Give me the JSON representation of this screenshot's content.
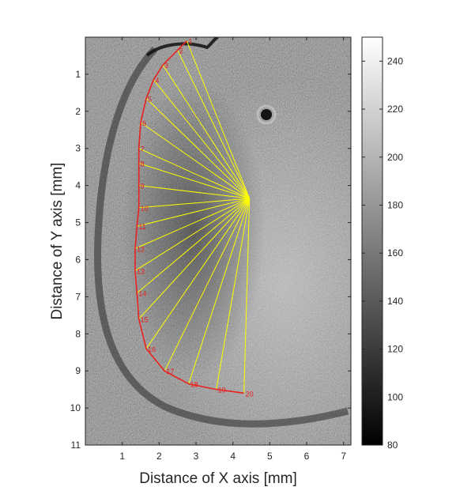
{
  "chart_data": {
    "type": "scatter",
    "subtype": "grayscale image with overlaid boundary contour and radial lines",
    "xlabel": "Distance of X axis [mm]",
    "ylabel": "Distance of Y axis [mm]",
    "xlim": [
      0,
      7.2
    ],
    "ylim": [
      11,
      0
    ],
    "y_reversed": true,
    "xticks": [
      "1",
      "2",
      "3",
      "4",
      "5",
      "6",
      "7"
    ],
    "yticks": [
      "1",
      "2",
      "3",
      "4",
      "5",
      "6",
      "7",
      "8",
      "9",
      "10",
      "11"
    ],
    "colorbar": {
      "colormap": "gray",
      "range": [
        80,
        250
      ],
      "ticks": [
        "80",
        "100",
        "120",
        "140",
        "160",
        "180",
        "200",
        "220",
        "240"
      ]
    },
    "center": {
      "x": 4.45,
      "y": 4.35
    },
    "boundary_points": [
      {
        "label": "1",
        "x": 2.75,
        "y": 0.1
      },
      {
        "label": "2",
        "x": 2.5,
        "y": 0.35
      },
      {
        "label": "3",
        "x": 2.1,
        "y": 0.75
      },
      {
        "label": "4",
        "x": 1.85,
        "y": 1.15
      },
      {
        "label": "5",
        "x": 1.65,
        "y": 1.65
      },
      {
        "label": "6",
        "x": 1.5,
        "y": 2.3
      },
      {
        "label": "7",
        "x": 1.45,
        "y": 3.0
      },
      {
        "label": "8",
        "x": 1.45,
        "y": 3.4
      },
      {
        "label": "9",
        "x": 1.45,
        "y": 4.0
      },
      {
        "label": "10",
        "x": 1.45,
        "y": 4.6
      },
      {
        "label": "11",
        "x": 1.4,
        "y": 5.1
      },
      {
        "label": "12",
        "x": 1.35,
        "y": 5.7
      },
      {
        "label": "13",
        "x": 1.35,
        "y": 6.3
      },
      {
        "label": "14",
        "x": 1.4,
        "y": 6.9
      },
      {
        "label": "15",
        "x": 1.45,
        "y": 7.6
      },
      {
        "label": "16",
        "x": 1.65,
        "y": 8.4
      },
      {
        "label": "17",
        "x": 2.15,
        "y": 9.0
      },
      {
        "label": "18",
        "x": 2.8,
        "y": 9.35
      },
      {
        "label": "19",
        "x": 3.55,
        "y": 9.5
      },
      {
        "label": "20",
        "x": 4.3,
        "y": 9.6
      }
    ],
    "colors": {
      "boundary": "#e8221e",
      "rays": "#ffff00",
      "axis": "#262626"
    },
    "grid": false,
    "legend": "none"
  }
}
